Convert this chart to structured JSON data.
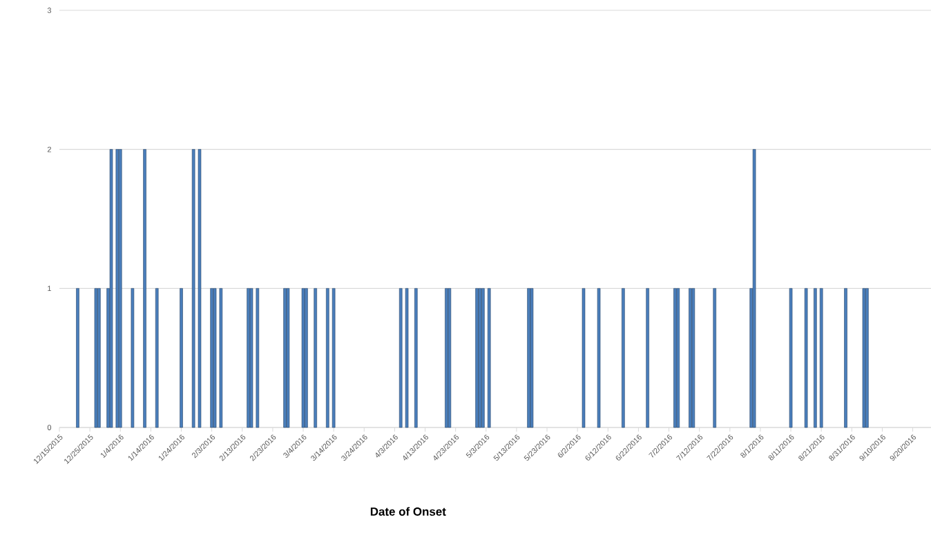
{
  "chart_data": {
    "type": "bar",
    "xlabel": "**Date of Onset**",
    "x": [
      "2015-12-21",
      "2015-12-27",
      "2015-12-28",
      "2015-12-31",
      "2016-01-01",
      "2016-01-03",
      "2016-01-04",
      "2016-01-08",
      "2016-01-12",
      "2016-01-16",
      "2016-01-24",
      "2016-01-28",
      "2016-01-30",
      "2016-02-03",
      "2016-02-04",
      "2016-02-06",
      "2016-02-15",
      "2016-02-16",
      "2016-02-18",
      "2016-02-27",
      "2016-02-28",
      "2016-03-04",
      "2016-03-05",
      "2016-03-08",
      "2016-03-12",
      "2016-03-14",
      "2016-04-05",
      "2016-04-07",
      "2016-04-10",
      "2016-04-20",
      "2016-04-21",
      "2016-04-30",
      "2016-05-01",
      "2016-05-02",
      "2016-05-04",
      "2016-05-17",
      "2016-05-18",
      "2016-06-04",
      "2016-06-09",
      "2016-06-17",
      "2016-06-25",
      "2016-07-04",
      "2016-07-05",
      "2016-07-09",
      "2016-07-10",
      "2016-07-17",
      "2016-07-29",
      "2016-07-30",
      "2016-08-11",
      "2016-08-16",
      "2016-08-19",
      "2016-08-21",
      "2016-08-29",
      "2016-09-04",
      "2016-09-05"
    ],
    "values": [
      1,
      1,
      1,
      1,
      2,
      2,
      2,
      1,
      2,
      1,
      1,
      2,
      2,
      1,
      1,
      1,
      1,
      1,
      1,
      1,
      1,
      1,
      1,
      1,
      1,
      1,
      1,
      1,
      1,
      1,
      1,
      1,
      1,
      1,
      1,
      1,
      1,
      1,
      1,
      1,
      1,
      1,
      1,
      1,
      1,
      1,
      1,
      2,
      1,
      1,
      1,
      1,
      1,
      1,
      1
    ],
    "color": "#4a7ebb",
    "xlim": [
      "2015-12-15",
      "2016-09-26"
    ],
    "xticks": [
      {
        "value": "2015-12-15",
        "label": "12/15/2015"
      },
      {
        "value": "2015-12-25",
        "label": "12/25/2015"
      },
      {
        "value": "2016-01-04",
        "label": "1/4/2016"
      },
      {
        "value": "2016-01-14",
        "label": "1/14/2016"
      },
      {
        "value": "2016-01-24",
        "label": "1/24/2016"
      },
      {
        "value": "2016-02-03",
        "label": "2/3/2016"
      },
      {
        "value": "2016-02-13",
        "label": "2/13/2016"
      },
      {
        "value": "2016-02-23",
        "label": "2/23/2016"
      },
      {
        "value": "2016-03-04",
        "label": "3/4/2016"
      },
      {
        "value": "2016-03-14",
        "label": "3/14/2016"
      },
      {
        "value": "2016-03-24",
        "label": "3/24/2016"
      },
      {
        "value": "2016-04-03",
        "label": "4/3/2016"
      },
      {
        "value": "2016-04-13",
        "label": "4/13/2016"
      },
      {
        "value": "2016-04-23",
        "label": "4/23/2016"
      },
      {
        "value": "2016-05-03",
        "label": "5/3/2016"
      },
      {
        "value": "2016-05-13",
        "label": "5/13/2016"
      },
      {
        "value": "2016-05-23",
        "label": "5/23/2016"
      },
      {
        "value": "2016-06-02",
        "label": "6/2/2016"
      },
      {
        "value": "2016-06-12",
        "label": "6/12/2016"
      },
      {
        "value": "2016-06-22",
        "label": "6/22/2016"
      },
      {
        "value": "2016-07-02",
        "label": "7/2/2016"
      },
      {
        "value": "2016-07-12",
        "label": "7/12/2016"
      },
      {
        "value": "2016-07-22",
        "label": "7/22/2016"
      },
      {
        "value": "2016-08-01",
        "label": "8/1/2016"
      },
      {
        "value": "2016-08-11",
        "label": "8/11/2016"
      },
      {
        "value": "2016-08-21",
        "label": "8/21/2016"
      },
      {
        "value": "2016-08-31",
        "label": "8/31/2016"
      },
      {
        "value": "2016-09-10",
        "label": "9/10/2016"
      },
      {
        "value": "2016-09-20",
        "label": "9/20/2016"
      }
    ],
    "ylim": [
      0,
      3
    ],
    "yticks": [
      0,
      1,
      2,
      3
    ],
    "grid": "y"
  }
}
